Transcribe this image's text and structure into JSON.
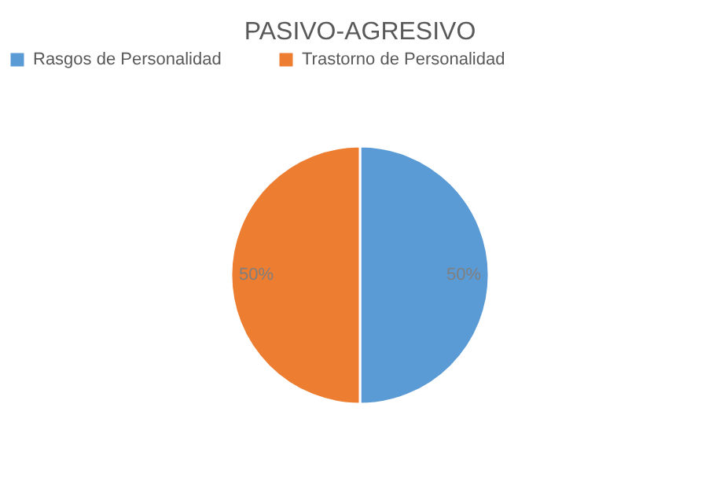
{
  "chart_data": {
    "type": "pie",
    "title": "PASIVO-AGRESIVO",
    "categories": [
      "Rasgos de  Personalidad",
      "Trastorno de  Personalidad"
    ],
    "values": [
      50,
      50
    ],
    "colors": [
      "#5b9bd5",
      "#ed7d31"
    ],
    "value_labels": [
      "50%",
      "50%"
    ],
    "legend": "top"
  }
}
